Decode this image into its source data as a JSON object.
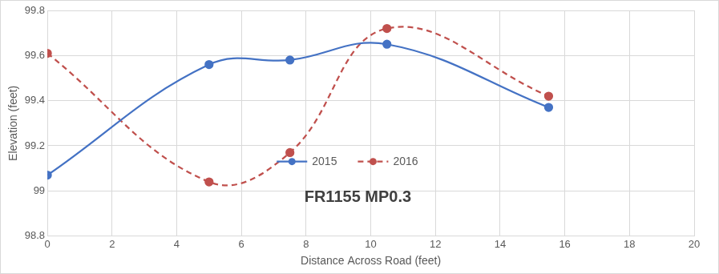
{
  "chart_data": {
    "type": "line",
    "x_label": "Distance Across Road (feet)",
    "y_label": "Elevation (feet)",
    "annotations": [
      "FR1155 MP0.3"
    ],
    "series": [
      {
        "name": "2015",
        "color": "#4472c4",
        "marker": "circle",
        "line_style": "solid",
        "x": [
          0,
          5,
          7.5,
          10.5,
          15.5
        ],
        "values": [
          99.07,
          99.56,
          99.58,
          99.65,
          99.37
        ]
      },
      {
        "name": "2016",
        "color": "#c0504d",
        "marker": "circle",
        "line_style": "dashed",
        "x": [
          0,
          5,
          7.5,
          10.5,
          15.5
        ],
        "values": [
          99.61,
          99.04,
          99.17,
          99.72,
          99.42
        ]
      }
    ],
    "xlim": [
      0,
      20
    ],
    "xticks": [
      0,
      2,
      4,
      6,
      8,
      10,
      12,
      14,
      16,
      18,
      20
    ],
    "ylim": [
      98.8,
      99.8
    ],
    "yticks": [
      98.8,
      99,
      99.2,
      99.4,
      99.6,
      99.8
    ],
    "grid": true,
    "legend": "bottom"
  }
}
